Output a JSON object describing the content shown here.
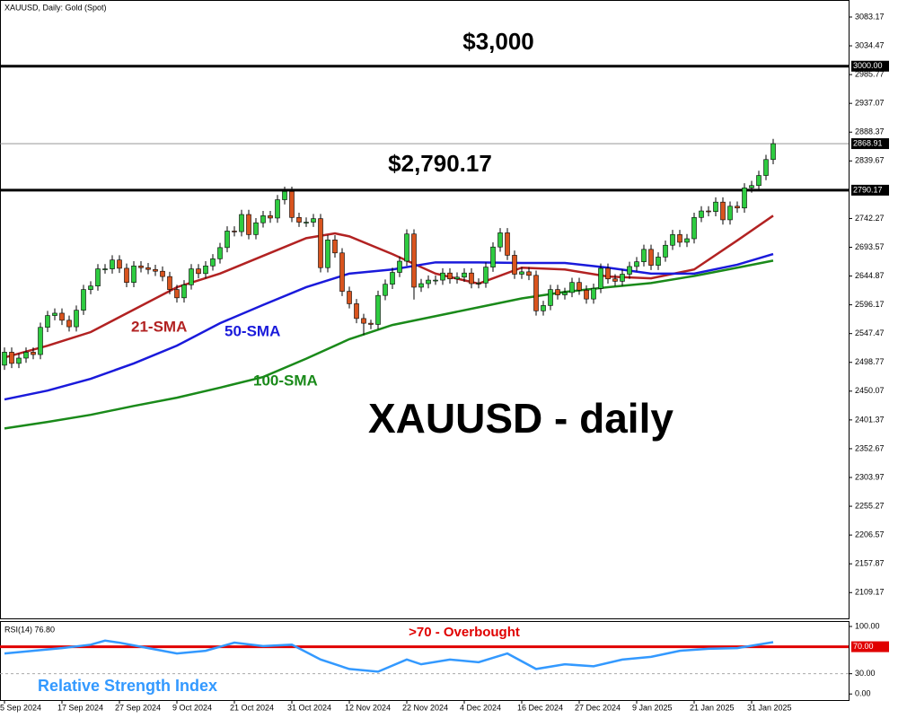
{
  "chart_data": [
    {
      "type": "candlestick",
      "title": "XAUUSD, Daily:  Gold (Spot)",
      "annotation": "XAUUSD - daily",
      "xticks": [
        {
          "value": 0,
          "label": "5 Sep 2024"
        },
        {
          "value": 8,
          "label": "17 Sep 2024"
        },
        {
          "value": 16,
          "label": "27 Sep 2024"
        },
        {
          "value": 24,
          "label": "9 Oct 2024"
        },
        {
          "value": 32,
          "label": "21 Oct 2024"
        },
        {
          "value": 40,
          "label": "31 Oct 2024"
        },
        {
          "value": 48,
          "label": "12 Nov 2024"
        },
        {
          "value": 56,
          "label": "22 Nov 2024"
        },
        {
          "value": 64,
          "label": "4 Dec 2024"
        },
        {
          "value": 72,
          "label": "16 Dec 2024"
        },
        {
          "value": 80,
          "label": "27 Dec 2024"
        },
        {
          "value": 88,
          "label": "9 Jan 2025"
        },
        {
          "value": 96,
          "label": "21 Jan 2025"
        },
        {
          "value": 104,
          "label": "31 Jan 2025"
        }
      ],
      "ylim": [
        2064,
        3112
      ],
      "yticks": [
        3083.17,
        3034.47,
        2985.77,
        2937.07,
        2888.37,
        2839.67,
        2742.27,
        2693.57,
        2644.87,
        2596.17,
        2547.47,
        2498.77,
        2450.07,
        2401.37,
        2352.67,
        2303.97,
        2255.27,
        2206.57,
        2157.87,
        2109.17
      ],
      "open": [
        2494,
        2516,
        2497,
        2506,
        2516,
        2512,
        2558,
        2578,
        2582,
        2570,
        2559,
        2587,
        2622,
        2628,
        2657,
        2657,
        2672,
        2658,
        2634,
        2662,
        2659,
        2656,
        2653,
        2644,
        2622,
        2608,
        2630,
        2657,
        2649,
        2662,
        2674,
        2693,
        2721,
        2720,
        2749,
        2715,
        2735,
        2747,
        2743,
        2774,
        2788,
        2744,
        2736,
        2736,
        2742,
        2659,
        2706,
        2684,
        2619,
        2598,
        2573,
        2565,
        2563,
        2612,
        2631,
        2651,
        2670,
        2716,
        2626,
        2632,
        2638,
        2638,
        2650,
        2640,
        2643,
        2650,
        2632,
        2633,
        2660,
        2694,
        2718,
        2680,
        2648,
        2652,
        2646,
        2586,
        2595,
        2622,
        2613,
        2617,
        2634,
        2621,
        2606,
        2624,
        2658,
        2640,
        2636,
        2648,
        2661,
        2669,
        2690,
        2663,
        2677,
        2697,
        2715,
        2702,
        2708,
        2744,
        2755,
        2754,
        2770,
        2740,
        2763,
        2760,
        2794,
        2798,
        2815,
        2842
      ],
      "high": [
        2524,
        2524,
        2514,
        2524,
        2524,
        2566,
        2586,
        2590,
        2590,
        2578,
        2595,
        2630,
        2636,
        2665,
        2665,
        2680,
        2680,
        2666,
        2670,
        2670,
        2667,
        2664,
        2661,
        2652,
        2630,
        2638,
        2665,
        2665,
        2670,
        2682,
        2701,
        2729,
        2729,
        2757,
        2757,
        2743,
        2755,
        2755,
        2782,
        2796,
        2796,
        2752,
        2744,
        2750,
        2750,
        2714,
        2714,
        2692,
        2627,
        2606,
        2581,
        2571,
        2620,
        2639,
        2659,
        2678,
        2724,
        2724,
        2640,
        2646,
        2646,
        2658,
        2658,
        2651,
        2658,
        2658,
        2641,
        2668,
        2702,
        2726,
        2726,
        2688,
        2660,
        2660,
        2654,
        2603,
        2630,
        2630,
        2625,
        2642,
        2642,
        2629,
        2632,
        2666,
        2666,
        2648,
        2656,
        2669,
        2677,
        2698,
        2698,
        2685,
        2705,
        2723,
        2723,
        2716,
        2752,
        2763,
        2763,
        2778,
        2778,
        2771,
        2771,
        2802,
        2806,
        2823,
        2850,
        2877
      ],
      "low": [
        2486,
        2489,
        2489,
        2498,
        2504,
        2504,
        2550,
        2570,
        2562,
        2551,
        2551,
        2579,
        2614,
        2620,
        2649,
        2649,
        2650,
        2626,
        2626,
        2651,
        2648,
        2645,
        2636,
        2614,
        2600,
        2600,
        2622,
        2641,
        2641,
        2654,
        2666,
        2685,
        2712,
        2712,
        2707,
        2707,
        2727,
        2735,
        2735,
        2766,
        2736,
        2728,
        2728,
        2728,
        2651,
        2651,
        2676,
        2611,
        2590,
        2565,
        2545,
        2555,
        2555,
        2604,
        2623,
        2643,
        2662,
        2605,
        2618,
        2624,
        2630,
        2630,
        2632,
        2632,
        2635,
        2624,
        2624,
        2625,
        2652,
        2686,
        2672,
        2640,
        2640,
        2638,
        2578,
        2578,
        2587,
        2605,
        2605,
        2609,
        2613,
        2598,
        2598,
        2616,
        2632,
        2628,
        2628,
        2640,
        2653,
        2661,
        2655,
        2655,
        2669,
        2689,
        2694,
        2694,
        2700,
        2736,
        2746,
        2746,
        2732,
        2732,
        2752,
        2752,
        2786,
        2790,
        2807,
        2834
      ],
      "close": [
        2516,
        2497,
        2506,
        2516,
        2512,
        2558,
        2578,
        2582,
        2570,
        2559,
        2587,
        2622,
        2628,
        2657,
        2657,
        2672,
        2658,
        2634,
        2662,
        2659,
        2656,
        2653,
        2644,
        2622,
        2608,
        2630,
        2657,
        2649,
        2662,
        2674,
        2693,
        2721,
        2720,
        2749,
        2715,
        2735,
        2747,
        2743,
        2774,
        2788,
        2744,
        2736,
        2736,
        2742,
        2659,
        2706,
        2684,
        2619,
        2598,
        2573,
        2565,
        2563,
        2612,
        2631,
        2651,
        2670,
        2716,
        2626,
        2632,
        2638,
        2638,
        2650,
        2640,
        2643,
        2650,
        2632,
        2633,
        2660,
        2694,
        2718,
        2680,
        2648,
        2652,
        2646,
        2586,
        2595,
        2622,
        2613,
        2617,
        2634,
        2621,
        2606,
        2624,
        2658,
        2640,
        2636,
        2648,
        2661,
        2669,
        2690,
        2663,
        2677,
        2697,
        2715,
        2702,
        2708,
        2744,
        2755,
        2754,
        2770,
        2740,
        2763,
        2760,
        2794,
        2798,
        2815,
        2842,
        2868.91
      ],
      "up_color": "#2ecc40",
      "down_color": "#d9541e",
      "series": [
        {
          "name": "21-SMA",
          "color": "#b22222",
          "x": [
            0,
            6,
            12,
            18,
            24,
            30,
            36,
            42,
            46,
            48,
            54,
            60,
            66,
            72,
            78,
            84,
            90,
            96,
            102,
            107
          ],
          "values": [
            2507,
            2527,
            2550,
            2588,
            2626,
            2649,
            2679,
            2709,
            2717,
            2712,
            2682,
            2649,
            2632,
            2659,
            2656,
            2644,
            2641,
            2656,
            2705,
            2747
          ]
        },
        {
          "name": "50-SMA",
          "color": "#1a1adb",
          "x": [
            0,
            6,
            12,
            18,
            24,
            30,
            36,
            42,
            48,
            54,
            60,
            66,
            72,
            78,
            84,
            90,
            96,
            102,
            107
          ],
          "values": [
            2436,
            2451,
            2471,
            2497,
            2527,
            2565,
            2596,
            2626,
            2649,
            2656,
            2668,
            2668,
            2667,
            2667,
            2659,
            2649,
            2649,
            2664,
            2682
          ]
        },
        {
          "name": "100-SMA",
          "color": "#1a8a1a",
          "x": [
            0,
            6,
            12,
            18,
            24,
            30,
            36,
            42,
            48,
            54,
            60,
            66,
            72,
            78,
            84,
            90,
            96,
            102,
            107
          ],
          "values": [
            2387,
            2398,
            2410,
            2425,
            2439,
            2456,
            2474,
            2505,
            2538,
            2562,
            2577,
            2592,
            2607,
            2618,
            2626,
            2633,
            2645,
            2659,
            2671
          ]
        }
      ],
      "levels": [
        {
          "value": 3000,
          "label": "3000.00",
          "annotation": "$3,000"
        },
        {
          "value": 2790.17,
          "label": "2790.17",
          "annotation": "$2,790.17"
        }
      ],
      "last_price": 2868.91
    },
    {
      "type": "line",
      "title": "RSI(14) 76.80",
      "annotation": "Relative Strength Index",
      "ylim": [
        -9,
        108
      ],
      "yticks": [
        {
          "value": 100,
          "label": "100.00"
        },
        {
          "value": 30,
          "label": "30.00"
        },
        {
          "value": 0,
          "label": "0.00"
        }
      ],
      "levels": [
        {
          "value": 70,
          "label": "70.00",
          "annotation": ">70 - Overbought"
        }
      ],
      "series": [
        {
          "color": "#3399ff",
          "x": [
            0,
            4,
            8,
            12,
            14,
            16,
            20,
            24,
            28,
            32,
            36,
            40,
            44,
            48,
            52,
            56,
            58,
            62,
            66,
            70,
            74,
            78,
            82,
            86,
            90,
            94,
            98,
            102,
            107
          ],
          "values": [
            60,
            64,
            68,
            73,
            79,
            76,
            68,
            60,
            64,
            76,
            71,
            73,
            51,
            37,
            33,
            51,
            44,
            51,
            47,
            60,
            37,
            44,
            41,
            51,
            55,
            64,
            67,
            68,
            76.8
          ]
        }
      ]
    }
  ]
}
